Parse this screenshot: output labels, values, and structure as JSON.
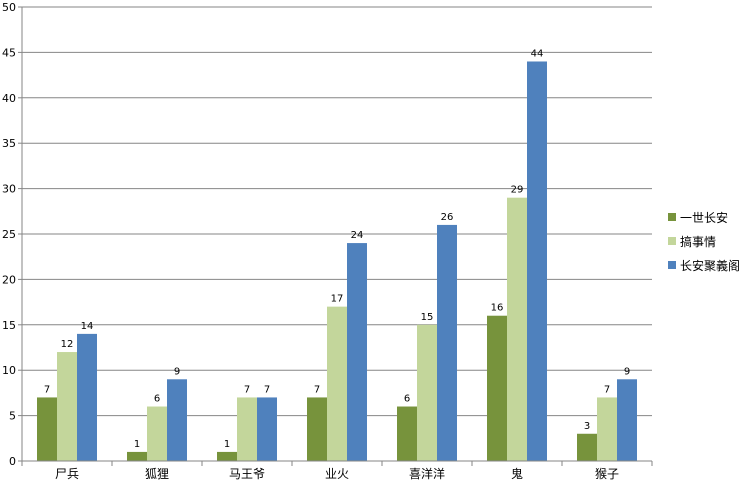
{
  "chart_data": {
    "type": "bar",
    "categories": [
      "尸兵",
      "狐狸",
      "马王爷",
      "业火",
      "喜洋洋",
      "鬼",
      "猴子"
    ],
    "series": [
      {
        "name": "一世长安",
        "color": "#77933c",
        "values": [
          7,
          1,
          1,
          7,
          6,
          16,
          3
        ]
      },
      {
        "name": "搞事情",
        "color": "#c3d69b",
        "values": [
          12,
          6,
          7,
          17,
          15,
          29,
          7
        ]
      },
      {
        "name": "长安聚義阁",
        "color": "#4f81bd",
        "values": [
          14,
          9,
          7,
          24,
          26,
          44,
          9
        ]
      }
    ],
    "ylim": [
      0,
      50
    ],
    "yticks": [
      "0",
      "5",
      "10",
      "15",
      "20",
      "25",
      "30",
      "35",
      "40",
      "45",
      "50"
    ],
    "grid": true,
    "legend_position": "right",
    "data_labels": true
  }
}
